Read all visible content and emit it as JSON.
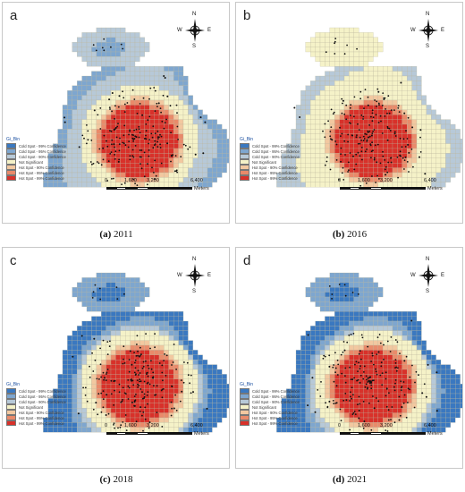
{
  "figure": {
    "panels": [
      {
        "letter": "a",
        "caption_letter": "(a)",
        "caption_year": "2011",
        "variant": 0
      },
      {
        "letter": "b",
        "caption_letter": "(b)",
        "caption_year": "2016",
        "variant": 1
      },
      {
        "letter": "c",
        "caption_letter": "(c)",
        "caption_year": "2018",
        "variant": 2
      },
      {
        "letter": "d",
        "caption_letter": "(d)",
        "caption_year": "2021",
        "variant": 3
      }
    ],
    "compass": {
      "n": "N",
      "s": "S",
      "w": "W",
      "e": "E"
    },
    "scale": {
      "ticks": [
        "0",
        "1,600",
        "3,200",
        "6,400"
      ],
      "unit": "Meters"
    },
    "legend": {
      "title": "Gi_Bin",
      "items": [
        {
          "label": "Cold Spot - 99% Confidence",
          "color": "#3a78c0"
        },
        {
          "label": "Cold Spot - 95% Confidence",
          "color": "#7ea6cf"
        },
        {
          "label": "Cold Spot - 90% Confidence",
          "color": "#b7c9d8"
        },
        {
          "label": "Not Significant",
          "color": "#f5f2c8"
        },
        {
          "label": "Hot Spot - 90% Confidence",
          "color": "#f2c8a0"
        },
        {
          "label": "Hot Spot - 95% Confidence",
          "color": "#e98a6a"
        },
        {
          "label": "Hot Spot - 99% Confidence",
          "color": "#d8312a"
        }
      ]
    }
  }
}
